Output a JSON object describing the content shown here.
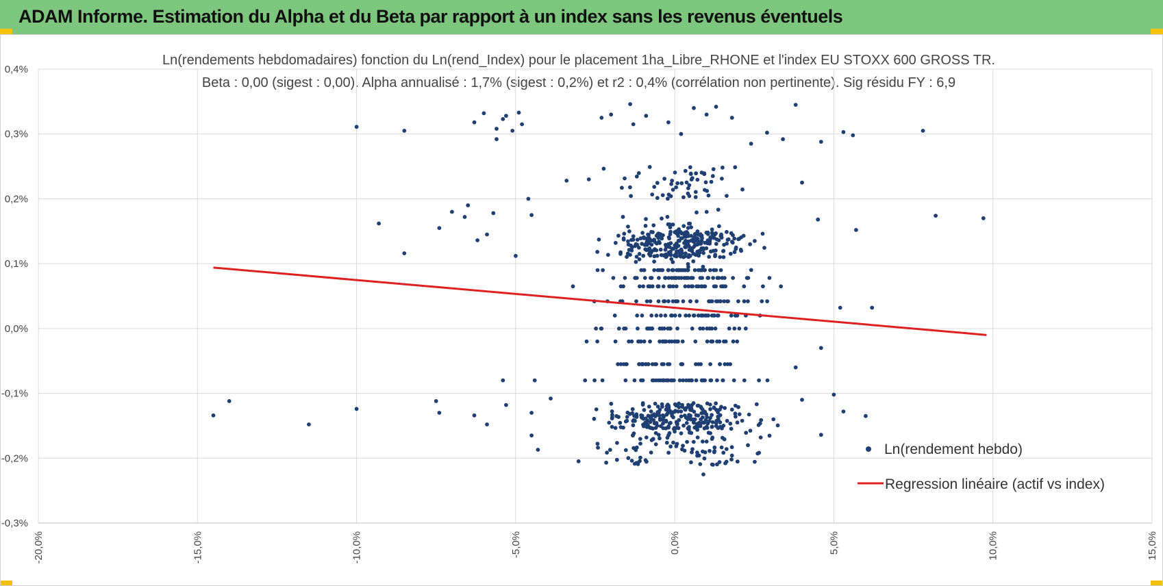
{
  "banner": {
    "title": "ADAM Informe. Estimation du Alpha et du Beta par rapport à un index sans les revenus éventuels",
    "background": "#7dc67d",
    "corner_accent": "#f4c20d"
  },
  "chart_data": {
    "type": "scatter",
    "title": "Ln(rendements hebdomadaires) fonction du Ln(rend_Index) pour le placement 1ha_Libre_RHONE et l'index EU STOXX 600 GROSS TR.",
    "subtitle": "Beta : 0,00 (sigest : 0,00).  Alpha annualisé : 1,7% (sigest : 0,2%) et r2 : 0,4% (corrélation non pertinente). Sig résidu FY : 6,9",
    "xlabel": "",
    "ylabel": "",
    "xlim": [
      -20,
      15
    ],
    "ylim": [
      -0.3,
      0.4
    ],
    "x_ticks": [
      -20,
      -15,
      -10,
      -5,
      0,
      5,
      10,
      15
    ],
    "x_tick_labels": [
      "-20,0%",
      "-15,0%",
      "-10,0%",
      "-5,0%",
      "0,0%",
      "5,0%",
      "10,0%",
      "15,0%"
    ],
    "y_ticks": [
      -0.3,
      -0.2,
      -0.1,
      0.0,
      0.1,
      0.2,
      0.3,
      0.4
    ],
    "y_tick_labels": [
      "-0,3%",
      "-0,2%",
      "-0,1%",
      "0,0%",
      "0,1%",
      "0,2%",
      "0,3%",
      "0,4%"
    ],
    "grid": true,
    "legend_position": "bottom-right",
    "series": [
      {
        "name": "Ln(rendement hebdo)",
        "kind": "points",
        "color": "#1f3f73",
        "generator": {
          "description": "weekly log returns (fund %) vs index log returns (%); dense cluster of ~1000 points near x=0, discrete levels in y",
          "y_levels": [
            0.0,
            0.02,
            0.042,
            0.065,
            0.078,
            0.09,
            -0.02,
            -0.055,
            -0.08
          ],
          "seed": 12345
        },
        "points": [
          [
            -14.5,
            -0.134
          ],
          [
            -14.0,
            -0.112
          ],
          [
            -11.5,
            -0.148
          ],
          [
            -10.0,
            -0.124
          ],
          [
            -10.0,
            0.311
          ],
          [
            -8.5,
            0.305
          ],
          [
            -8.5,
            0.116
          ],
          [
            -9.3,
            0.162
          ],
          [
            -7.5,
            -0.112
          ],
          [
            -7.4,
            -0.13
          ],
          [
            -7.0,
            0.18
          ],
          [
            -7.4,
            0.155
          ],
          [
            -6.6,
            0.172
          ],
          [
            -6.5,
            0.19
          ],
          [
            -6.3,
            0.318
          ],
          [
            -6.2,
            0.136
          ],
          [
            -6.0,
            0.332
          ],
          [
            -5.9,
            0.145
          ],
          [
            -5.7,
            0.178
          ],
          [
            -5.6,
            0.308
          ],
          [
            -5.6,
            0.292
          ],
          [
            -5.4,
            0.323
          ],
          [
            -5.3,
            0.328
          ],
          [
            -5.1,
            0.305
          ],
          [
            -4.9,
            0.333
          ],
          [
            -4.8,
            0.315
          ],
          [
            -5.0,
            0.112
          ],
          [
            -4.6,
            0.2
          ],
          [
            -4.5,
            0.175
          ],
          [
            -4.4,
            -0.08
          ],
          [
            -4.5,
            -0.165
          ],
          [
            -5.4,
            -0.08
          ],
          [
            -5.3,
            -0.118
          ],
          [
            -6.3,
            -0.134
          ],
          [
            -5.9,
            -0.148
          ],
          [
            -4.3,
            -0.187
          ],
          [
            -4.5,
            -0.13
          ],
          [
            -3.9,
            -0.108
          ],
          [
            -3.4,
            0.228
          ],
          [
            -3.2,
            0.065
          ],
          [
            -2.7,
            0.23
          ],
          [
            -2.3,
            0.325
          ],
          [
            -2.0,
            0.33
          ],
          [
            -1.4,
            0.346
          ],
          [
            -1.3,
            0.315
          ],
          [
            -0.9,
            0.328
          ],
          [
            -0.2,
            0.318
          ],
          [
            0.2,
            0.3
          ],
          [
            0.6,
            0.34
          ],
          [
            1.0,
            0.33
          ],
          [
            1.3,
            0.342
          ],
          [
            1.8,
            0.325
          ],
          [
            2.4,
            0.285
          ],
          [
            2.9,
            0.302
          ],
          [
            3.4,
            0.292
          ],
          [
            3.8,
            0.345
          ],
          [
            4.0,
            0.225
          ],
          [
            4.5,
            0.168
          ],
          [
            4.6,
            0.288
          ],
          [
            5.2,
            0.032
          ],
          [
            5.3,
            0.303
          ],
          [
            5.6,
            0.298
          ],
          [
            5.7,
            0.152
          ],
          [
            5.0,
            -0.102
          ],
          [
            5.3,
            -0.128
          ],
          [
            6.0,
            -0.135
          ],
          [
            6.2,
            0.032
          ],
          [
            7.8,
            0.305
          ],
          [
            8.2,
            0.174
          ],
          [
            9.7,
            0.17
          ],
          [
            3.8,
            -0.06
          ],
          [
            4.6,
            -0.164
          ],
          [
            4.6,
            -0.03
          ],
          [
            4.0,
            -0.11
          ],
          [
            1.8,
            -0.125
          ],
          [
            2.7,
            -0.168
          ],
          [
            3.1,
            -0.14
          ],
          [
            2.3,
            -0.18
          ],
          [
            1.2,
            -0.21
          ],
          [
            0.9,
            -0.225
          ]
        ]
      },
      {
        "name": "Regression linéaire (actif vs index)",
        "kind": "line",
        "color": "#e02020",
        "points": [
          [
            -14.5,
            0.094
          ],
          [
            9.8,
            -0.01
          ]
        ]
      }
    ]
  }
}
